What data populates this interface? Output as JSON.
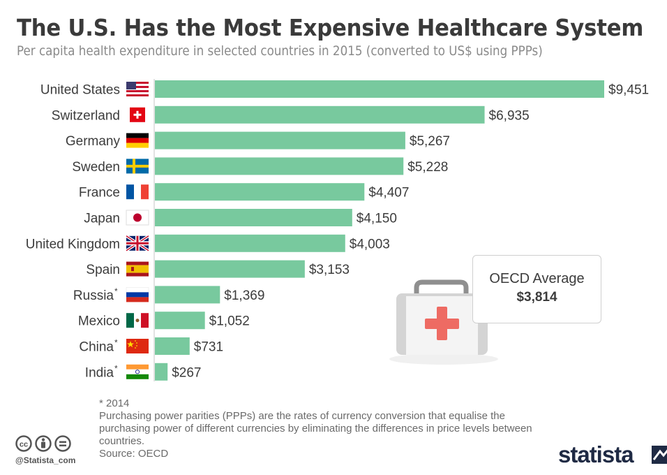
{
  "title": "The U.S. Has the Most Expensive Healthcare System",
  "subtitle": "Per capita health expenditure in selected countries in 2015 (converted to US$ using PPPs)",
  "chart_data": {
    "type": "bar",
    "orientation": "horizontal",
    "categories": [
      "United States",
      "Switzerland",
      "Germany",
      "Sweden",
      "France",
      "Japan",
      "United Kingdom",
      "Spain",
      "Russia",
      "Mexico",
      "China",
      "India"
    ],
    "category_marks": [
      "",
      "",
      "",
      "",
      "",
      "",
      "",
      "",
      "*",
      "",
      "*",
      "*"
    ],
    "values": [
      9451,
      6935,
      5267,
      5228,
      4407,
      4150,
      4003,
      3153,
      1369,
      1052,
      731,
      267
    ],
    "value_labels": [
      "$9,451",
      "$6,935",
      "$5,267",
      "$5,228",
      "$4,407",
      "$4,150",
      "$4,003",
      "$3,153",
      "$1,369",
      "$1,052",
      "$731",
      "$267"
    ],
    "flags": [
      "us",
      "ch",
      "de",
      "se",
      "fr",
      "jp",
      "gb",
      "es",
      "ru",
      "mx",
      "cn",
      "in"
    ],
    "bar_color": "#78c99e",
    "unit": "US$",
    "grid": false,
    "legend": "none"
  },
  "oecd": {
    "label": "OECD Average",
    "value": "$3,814"
  },
  "icons": {
    "illustration": "first-aid-kit-icon",
    "license": [
      "cc-icon",
      "by-icon",
      "nd-icon"
    ],
    "logo": "statista-logo-icon"
  },
  "footnotes": {
    "note1": "* 2014",
    "note2": "Purchasing power parities (PPPs) are the rates of currency conversion that equalise the purchasing power of different currencies by eliminating the differences in price levels between countries.",
    "source": "Source: OECD"
  },
  "branding": {
    "handle": "@Statista_com",
    "logo_text": "statista"
  }
}
